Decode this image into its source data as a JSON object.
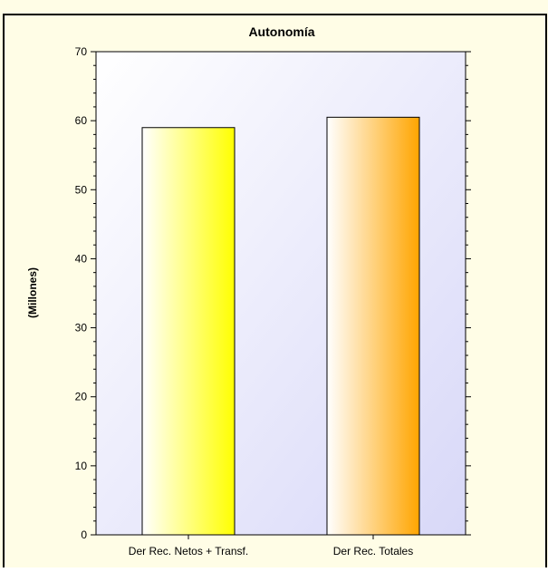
{
  "chart_data": {
    "type": "bar",
    "title": "Autonomía",
    "ylabel": "(Millones)",
    "xlabel": "",
    "categories": [
      "Der Rec. Netos + Transf.",
      "Der Rec. Totales"
    ],
    "values": [
      59.0,
      60.5
    ],
    "ylim": [
      0,
      70
    ],
    "yticks": [
      0,
      10,
      20,
      30,
      40,
      50,
      60,
      70
    ],
    "bar_colors": [
      "#ffff00",
      "#ffa500"
    ],
    "grid": false,
    "legend": "none"
  },
  "colors": {
    "background": "#fffde6",
    "plot_gradient_start": "#ffffff",
    "plot_gradient_end": "#d8d8f8",
    "frame_border": "#000000"
  }
}
